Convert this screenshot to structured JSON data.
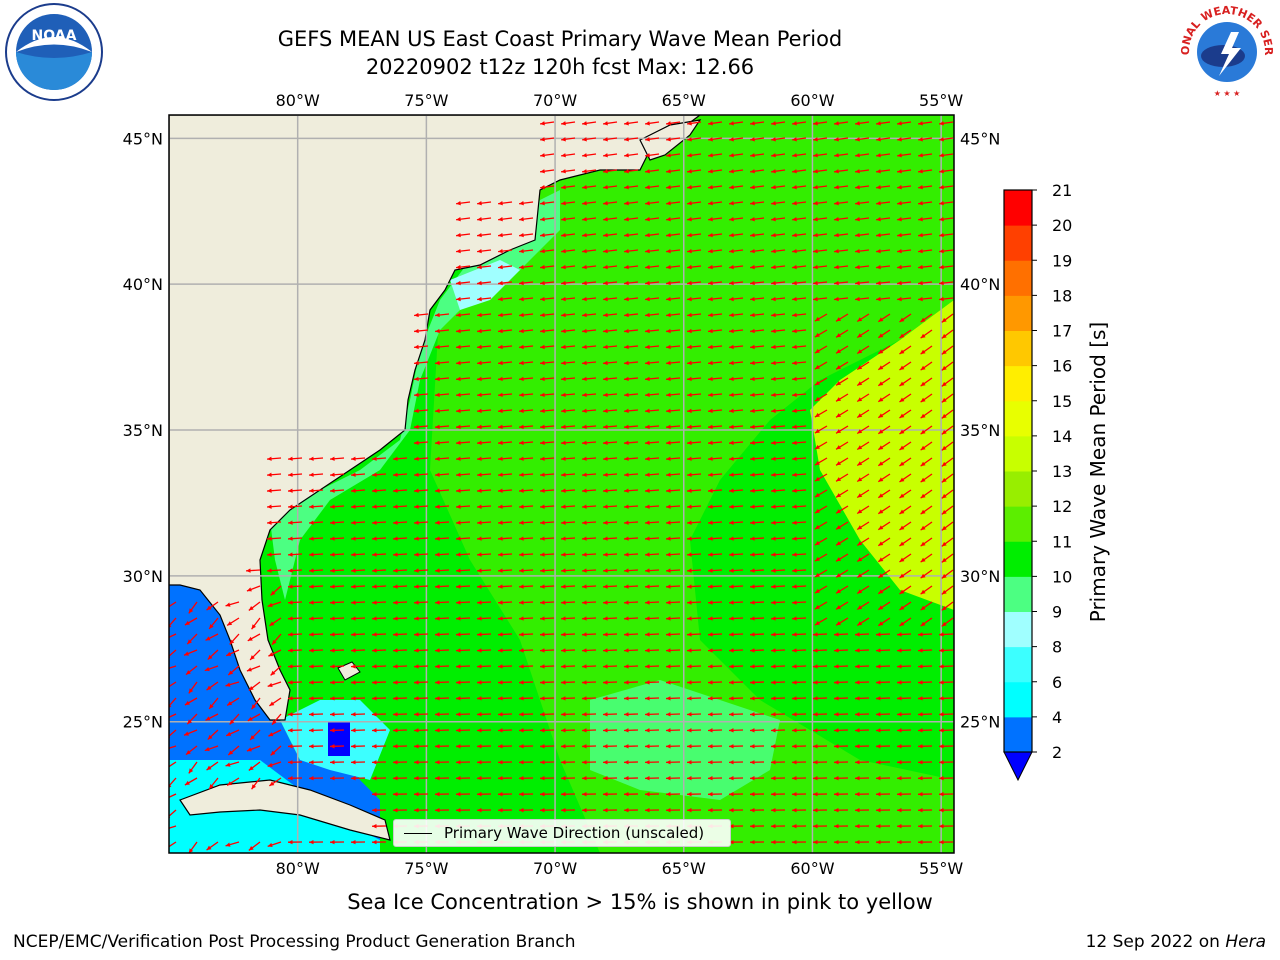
{
  "title_line1": "GEFS MEAN US East Coast Primary Wave Mean Period",
  "title_line2": "20220902 t12z 120h fcst   Max: 12.66",
  "bottom_note": "Sea Ice Concentration > 15% is shown in pink to yellow",
  "footer_left": "NCEP/EMC/Verification Post Processing Product Generation Branch",
  "footer_date": "12 Sep 2022 on",
  "footer_machine": "Hera",
  "logos": {
    "left": "NOAA",
    "right": "NATIONAL WEATHER SERVICE"
  },
  "legend_label": "Primary Wave Direction (unscaled)",
  "colorbar": {
    "label": "Primary Wave Mean Period [s]",
    "ticks": [
      "2",
      "4",
      "6",
      "8",
      "9",
      "10",
      "11",
      "12",
      "13",
      "14",
      "15",
      "16",
      "17",
      "18",
      "19",
      "20",
      "21"
    ],
    "colors": [
      "#0072ff",
      "#00ffff",
      "#3cffff",
      "#a0ffff",
      "#4cff82",
      "#00ee00",
      "#5cee00",
      "#98ee00",
      "#c8ff00",
      "#e8ff00",
      "#ffee00",
      "#ffc800",
      "#ff9800",
      "#ff7000",
      "#ff4000",
      "#ff0000"
    ],
    "extend_color": "#0000ff"
  },
  "map": {
    "lon_range": [
      -85,
      -54.5
    ],
    "lat_range": [
      20.5,
      45.8
    ],
    "lon_ticks": [
      -80,
      -75,
      -70,
      -65,
      -60,
      -55
    ],
    "lat_ticks": [
      25,
      30,
      35,
      40,
      45
    ],
    "lon_labels": [
      "80°W",
      "75°W",
      "70°W",
      "65°W",
      "60°W",
      "55°W"
    ],
    "lat_labels": [
      "25°N",
      "30°N",
      "35°N",
      "40°N",
      "45°N"
    ],
    "land_color": "#efeddc",
    "arrow_color": "#ff0000"
  }
}
